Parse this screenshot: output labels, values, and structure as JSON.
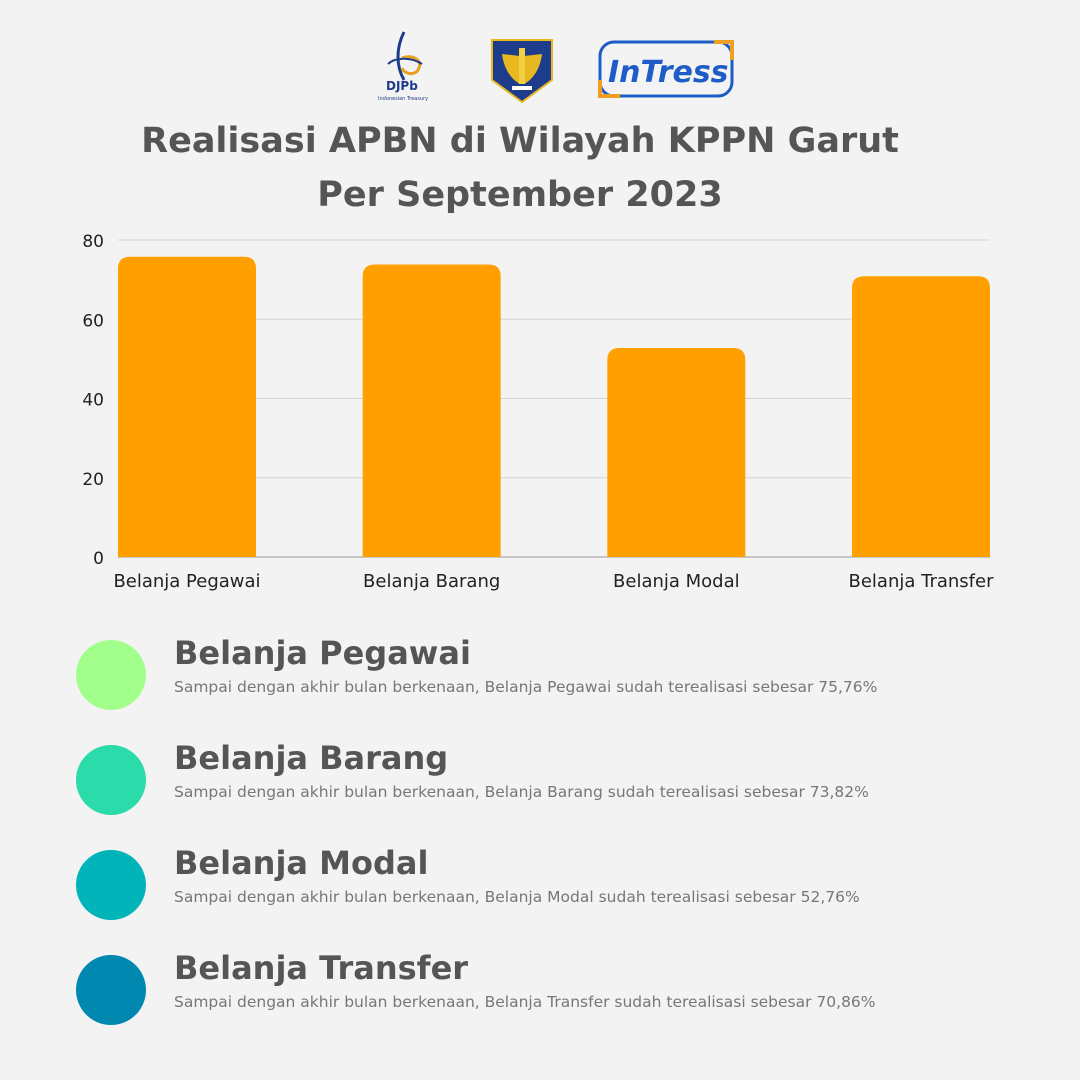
{
  "header": {
    "title_line1": "Realisasi APBN di Wilayah KPPN Garut",
    "title_line2": "Per September 2023",
    "logos": {
      "djpb_text": "DJPb",
      "djpb_sub": "Indonesian Treasury",
      "intress_text": "InTress"
    }
  },
  "chart_data": {
    "type": "bar",
    "categories": [
      "Belanja Pegawai",
      "Belanja Barang",
      "Belanja Modal",
      "Belanja Transfer"
    ],
    "values": [
      75.76,
      73.82,
      52.76,
      70.86
    ],
    "ylim": [
      0,
      80
    ],
    "yticks": [
      0,
      20,
      40,
      60,
      80
    ],
    "title": "",
    "xlabel": "",
    "ylabel": "",
    "bar_color": "#ffa000",
    "grid": true,
    "legend": "none"
  },
  "legend": [
    {
      "title": "Belanja Pegawai",
      "desc": "Sampai dengan akhir bulan berkenaan, Belanja Pegawai sudah terealisasi sebesar 75,76%",
      "color": "#a3ff8c"
    },
    {
      "title": "Belanja Barang",
      "desc": "Sampai dengan akhir bulan berkenaan, Belanja Barang sudah terealisasi sebesar 73,82%",
      "color": "#2bdcaa"
    },
    {
      "title": "Belanja Modal",
      "desc": "Sampai dengan akhir bulan berkenaan, Belanja Modal sudah terealisasi sebesar 52,76%",
      "color": "#00b4b9"
    },
    {
      "title": "Belanja Transfer",
      "desc": "Sampai dengan akhir bulan berkenaan, Belanja Transfer sudah terealisasi sebesar 70,86%",
      "color": "#0088b0"
    }
  ]
}
